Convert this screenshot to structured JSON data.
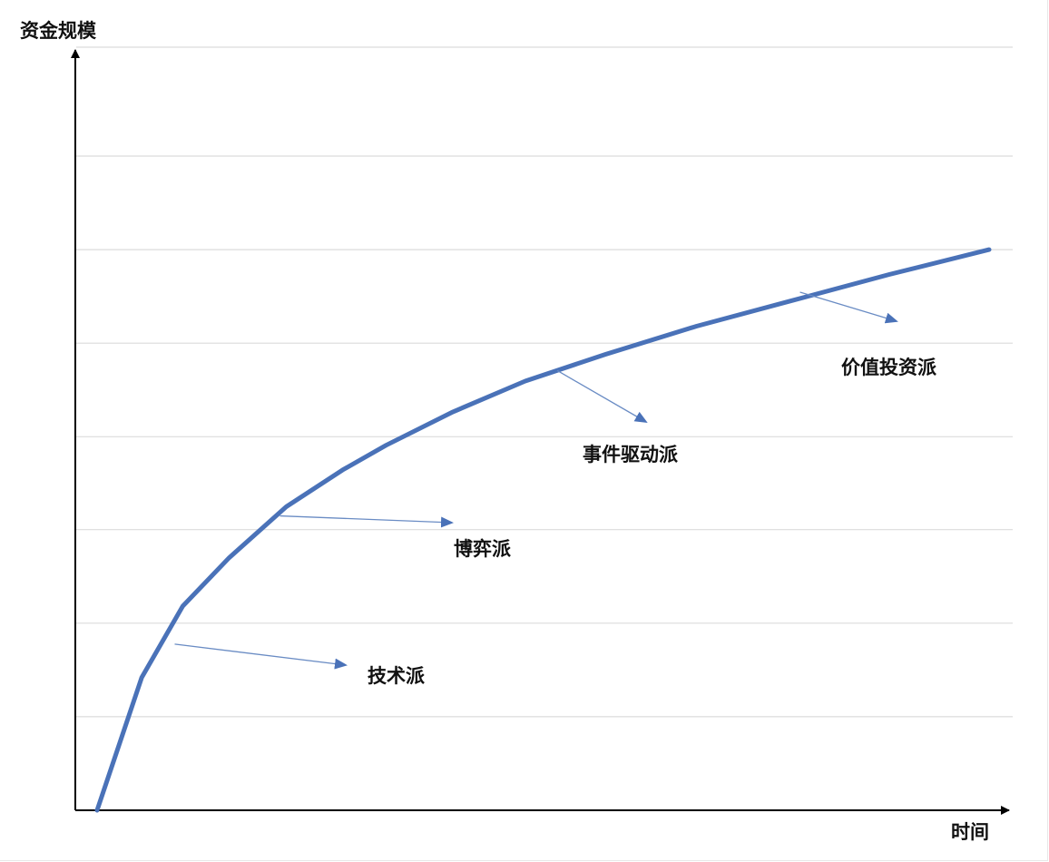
{
  "chart_data": {
    "type": "line",
    "title": "",
    "xlabel": "时间",
    "ylabel": "资金规模",
    "grid": true,
    "xlim": [
      0,
      100
    ],
    "ylim": [
      0,
      100
    ],
    "gridlines_y": [
      14.3,
      28.6,
      42.9,
      57.1,
      71.4,
      85.7,
      100
    ],
    "series": [
      {
        "x": [
          0,
          5.0,
          9.6,
          14.8,
          21.2,
          27.5,
          32.4,
          39.9,
          48.0,
          57.0,
          67.2,
          77.6,
          88.8,
          100
        ],
        "y": [
          0,
          20.3,
          31.2,
          38.6,
          46.4,
          52.0,
          55.8,
          60.9,
          65.6,
          69.7,
          74.0,
          77.8,
          81.9,
          85.7
        ],
        "color": "#4a72b8"
      }
    ],
    "annotations": [
      {
        "text": "技术派",
        "x": 8.7,
        "y": 25.4
      },
      {
        "text": "博弈派",
        "x": 20.5,
        "y": 45.0
      },
      {
        "text": "事件驱动派",
        "x": 51.6,
        "y": 67.2
      },
      {
        "text": "价值投资派",
        "x": 78.8,
        "y": 79.2
      }
    ]
  }
}
